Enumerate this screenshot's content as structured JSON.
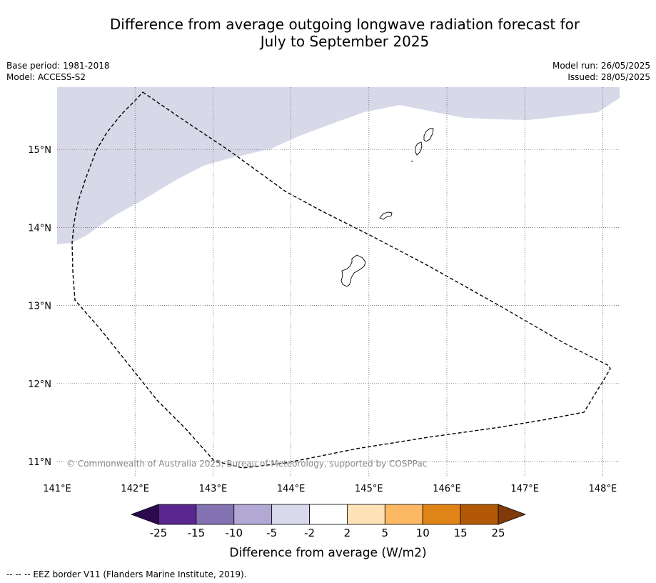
{
  "title_line1": "Difference from average outgoing longwave radiation forecast for",
  "title_line2": "July to September 2025",
  "meta": {
    "base_period": "Base period: 1981-2018",
    "model": "Model: ACCESS-S2",
    "model_run": "Model run: 26/05/2025",
    "issued": "Issued: 28/05/2025"
  },
  "map": {
    "lon_range": [
      141,
      148.2
    ],
    "lat_range": [
      10.8,
      15.8
    ],
    "lon_ticks": [
      "141°E",
      "142°E",
      "143°E",
      "144°E",
      "145°E",
      "146°E",
      "147°E",
      "148°E"
    ],
    "lat_ticks": [
      "11°N",
      "12°N",
      "13°N",
      "14°N",
      "15°N"
    ],
    "copyright": "© Commonwealth of Australia 2025, Bureau of Meteorology, supported by COSPPac",
    "region_color": "#d7d8e8"
  },
  "colorbar": {
    "tick_labels": [
      "-25",
      "-15",
      "-10",
      "-5",
      "-2",
      "2",
      "5",
      "10",
      "15",
      "25"
    ],
    "colors": [
      "#2d0a4f",
      "#5b2690",
      "#8473b3",
      "#b1a9d3",
      "#d9d9ec",
      "#ffffff",
      "#fde2b7",
      "#fcb863",
      "#e08417",
      "#b35806",
      "#7f3b08"
    ],
    "label": "Difference from average (W/m2)"
  },
  "footer": "--  --  -- EEZ border V11 (Flanders Marine Institute, 2019)."
}
